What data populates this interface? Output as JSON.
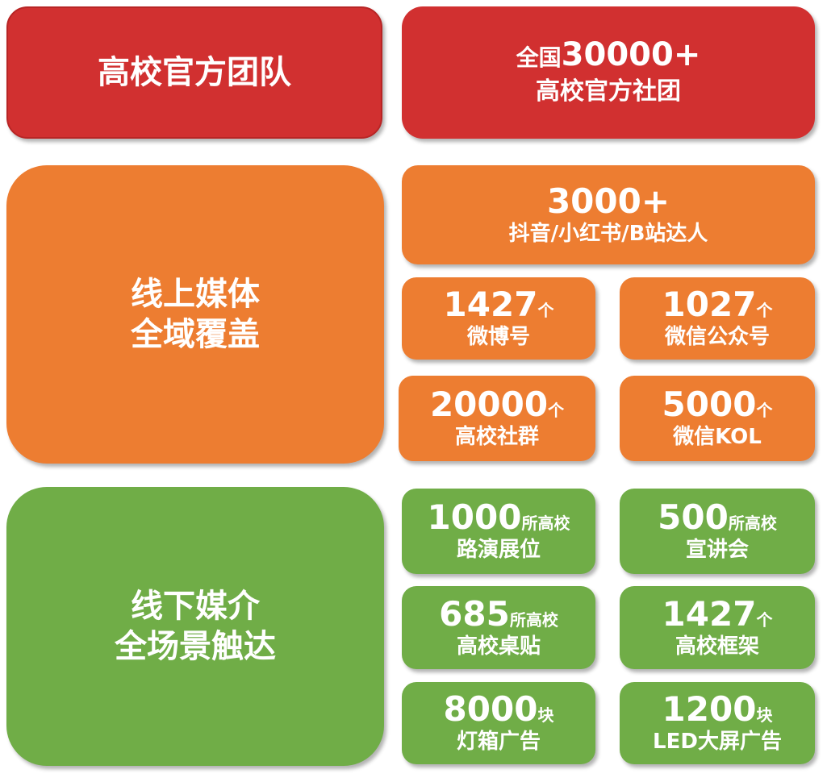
{
  "colors": {
    "red": "#D13030",
    "orange": "#ED7D31",
    "green": "#70AD47"
  },
  "team": {
    "title": "高校官方团队",
    "stat_prefix": "全国",
    "stat_value": "30000+",
    "stat_label": "高校官方社团"
  },
  "online": {
    "title_line1": "线上媒体",
    "title_line2": "全域覆盖",
    "top": {
      "value": "3000+",
      "label": "抖音/小红书/B站达人"
    },
    "items": [
      {
        "value": "1427",
        "unit": "个",
        "label": "微博号"
      },
      {
        "value": "1027",
        "unit": "个",
        "label": "微信公众号"
      },
      {
        "value": "20000",
        "unit": "个",
        "label": "高校社群"
      },
      {
        "value": "5000",
        "unit": "个",
        "label": "微信KOL"
      }
    ]
  },
  "offline": {
    "title_line1": "线下媒介",
    "title_line2": "全场景触达",
    "items": [
      {
        "value": "1000",
        "unit": "所高校",
        "label": "路演展位"
      },
      {
        "value": "500",
        "unit": "所高校",
        "label": "宣讲会"
      },
      {
        "value": "685",
        "unit": "所高校",
        "label": "高校桌贴"
      },
      {
        "value": "1427",
        "unit": "个",
        "label": "高校框架"
      },
      {
        "value": "8000",
        "unit": "块",
        "label": "灯箱广告"
      },
      {
        "value": "1200",
        "unit": "块",
        "label": "LED大屏广告"
      }
    ]
  }
}
